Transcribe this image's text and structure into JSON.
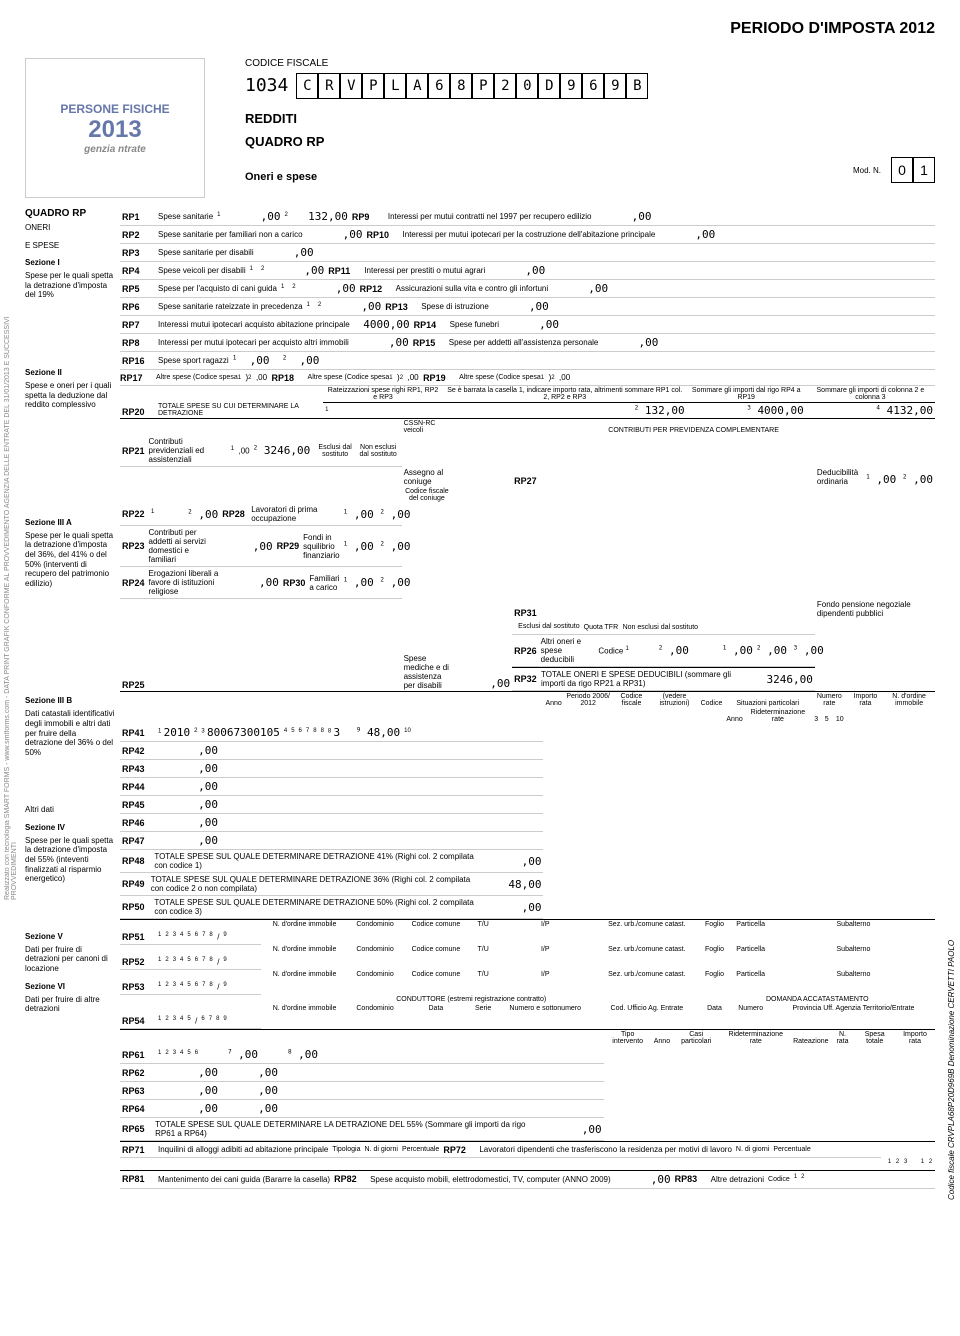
{
  "header": {
    "periodo": "PERIODO D'IMPOSTA 2012",
    "logo_line1": "PERSONE FISICHE",
    "logo_line2": "2013",
    "logo_line3": "genzia ntrate",
    "cf_label": "CODICE FISCALE",
    "cf_prefix": "1034",
    "cf_chars": [
      "C",
      "R",
      "V",
      "P",
      "L",
      "A",
      "6",
      "8",
      "P",
      "2",
      "0",
      "D",
      "9",
      "6",
      "9",
      "B"
    ],
    "redditi": "REDDITI",
    "quadro": "QUADRO RP",
    "oneri": "Oneri e spese",
    "modn_label": "Mod. N.",
    "modn_val": [
      "0",
      "1"
    ]
  },
  "sidebar": {
    "s0": {
      "title": "QUADRO RP",
      "sub1": "ONERI",
      "sub2": "E SPESE"
    },
    "s1": {
      "title": "Sezione I",
      "sub": "Spese per le quali spetta la detrazione d'imposta del 19%"
    },
    "s2": {
      "title": "Sezione II",
      "sub": "Spese e oneri per i quali spetta la deduzione dal reddito complessivo"
    },
    "s3a": {
      "title": "Sezione III A",
      "sub": "Spese per le quali spetta la detrazione d'imposta del 36%, del 41% o del 50% (interventi di recupero del patrimonio edilizio)"
    },
    "s3b": {
      "title": "Sezione III B",
      "sub": "Dati catastali identificativi degli immobili e altri dati per fruire della detrazione del 36% o del 50%"
    },
    "s4": {
      "title": "Sezione IV",
      "sub": "Spese per le quali spetta la detrazione d'imposta del 55% (inteventi finalizzati al risparmio energetico)"
    },
    "s5": {
      "title": "Sezione V",
      "sub": "Dati per fruire di detrazioni per canoni di locazione"
    },
    "s6": {
      "title": "Sezione VI",
      "sub": "Dati per fruire di altre detrazioni"
    },
    "altridati": "Altri dati"
  },
  "rows": {
    "RP1": {
      "label": "Spese sanitarie",
      "val2": "132"
    },
    "RP2": {
      "label": "Spese sanitarie per familiari non a carico"
    },
    "RP3": {
      "label": "Spese sanitarie per disabili"
    },
    "RP4": {
      "label": "Spese veicoli per disabili"
    },
    "RP5": {
      "label": "Spese per l'acquisto di cani guida"
    },
    "RP6": {
      "label": "Spese sanitarie rateizzate in precedenza"
    },
    "RP7": {
      "label": "Interessi mutui ipotecari acquisto abitazione principale",
      "val": "4000"
    },
    "RP8": {
      "label": "Interessi per mutui ipotecari per acquisto altri immobili"
    },
    "RP9": {
      "label": "Interessi per mutui contratti nel 1997 per recupero edilizio"
    },
    "RP10": {
      "label": "Interessi per mutui ipotecari per la costruzione dell'abitazione principale"
    },
    "RP11": {
      "label": "Interessi per prestiti o mutui agrari"
    },
    "RP12": {
      "label": "Assicurazioni sulla vita e contro gli infortuni"
    },
    "RP13": {
      "label": "Spese di istruzione"
    },
    "RP14": {
      "label": "Spese funebri"
    },
    "RP15": {
      "label": "Spese per addetti all'assistenza personale"
    },
    "RP16": {
      "label": "Spese sport ragazzi"
    },
    "RP17": {
      "label": "Altre spese (Codice spesa"
    },
    "RP18": {
      "label": "Altre spese (Codice spesa"
    },
    "RP19": {
      "label": "Altre spese (Codice spesa"
    },
    "RP20": {
      "label": "TOTALE SPESE SU CUI DETERMINARE LA DETRAZIONE",
      "c1": "Rateizzazioni spese righi RP1, RP2 e RP3",
      "c2": "Se è barrata la casella 1, indicare importo rata, altrimenti sommare RP1 col. 2, RP2 e RP3",
      "c3": "Sommare gli importi dal rigo RP4 a RP19",
      "c4": "Sommare gli importi di colonna 2 e colonna 3",
      "v2": "132",
      "v3": "4000",
      "v4": "4132"
    },
    "RP21": {
      "label": "Contributi previdenziali ed assistenziali",
      "sub": "CSSN-RC veicoli",
      "val2": "3246",
      "head": "CONTRIBUTI PER PREVIDENZA COMPLEMENTARE",
      "h1": "Esclusi dal sostituto",
      "h2": "Non esclusi dal sostituto"
    },
    "RP22": {
      "label": "Assegno al coniuge",
      "sub": "Codice fiscale del coniuge"
    },
    "RP23": {
      "label": "Contributi per addetti ai servizi domestici e familiari"
    },
    "RP24": {
      "label": "Erogazioni liberali a favore di istituzioni religiose"
    },
    "RP25": {
      "label": "Spese mediche e di assistenza per disabili"
    },
    "RP26": {
      "label": "Altri oneri e spese deducibili",
      "sub": "Codice"
    },
    "RP27": {
      "label": "Deducibilità ordinaria"
    },
    "RP28": {
      "label": "Lavoratori di prima occupazione"
    },
    "RP29": {
      "label": "Fondi in squilibrio finanziario"
    },
    "RP30": {
      "label": "Familiari a carico"
    },
    "RP31": {
      "label": "Fondo pensione negoziale dipendenti pubblici",
      "h1": "Esclusi dal sostituto",
      "h2": "Quota TFR",
      "h3": "Non esclusi dal sostituto"
    },
    "RP32": {
      "label": "TOTALE ONERI E SPESE DEDUCIBILI (sommare gli importi da rigo RP21 a RP31)",
      "val": "3246"
    },
    "RP41": {
      "anno": "2010",
      "cf": "80067300105",
      "rate": "3",
      "importo": "48"
    },
    "RP48": {
      "label": "TOTALE SPESE SUL QUALE DETERMINARE DETRAZIONE 41% (Righi col. 2 compilata con codice 1)"
    },
    "RP49": {
      "label": "TOTALE SPESE SUL QUALE DETERMINARE DETRAZIONE 36% (Righi col. 2 compilata con codice 2 o non compilata)",
      "val": "48"
    },
    "RP50": {
      "label": "TOTALE SPESE SUL QUALE DETERMINARE DETRAZIONE 50% (Righi col. 2 compilata con codice 3)"
    },
    "RP65": {
      "label": "TOTALE SPESE SUL QUALE DETERMINARE LA DETRAZIONE DEL 55% (Sommare gli importi da rigo RP61 a RP64)"
    },
    "RP71": {
      "label": "Inquilini di alloggi adibiti ad abitazione principale",
      "c1": "Tipologia",
      "c2": "N. di giorni",
      "c3": "Percentuale"
    },
    "RP72": {
      "label": "Lavoratori dipendenti che trasferiscono la residenza per motivi di lavoro",
      "c1": "N. di giorni",
      "c2": "Percentuale"
    },
    "RP81": {
      "label": "Mantenimento dei cani guida (Bararre la casella)"
    },
    "RP82": {
      "label": "Spese acquisto mobili, elettrodomestici, TV, computer (ANNO 2009)"
    },
    "RP83": {
      "label": "Altre detrazioni",
      "sub": "Codice"
    }
  },
  "s3a_headers": {
    "anno": "Anno",
    "periodo": "Periodo 2006/ 2012",
    "cf": "Codice fiscale",
    "vedere": "(vedere istruzioni)",
    "codice": "Codice",
    "sit": "Situazioni particolari",
    "anno2": "Anno",
    "rid": "Rideterminazione rate",
    "nr": "Numero rate",
    "r3": "3",
    "r5": "5",
    "r10": "10",
    "ir": "Importo rata",
    "nord": "N. d'ordine immobile"
  },
  "s3b_headers": {
    "nord": "N. d'ordine immobile",
    "cond": "Condominio",
    "cc": "Codice comune",
    "tu": "T/U",
    "ip": "I/P",
    "sez": "Sez. urb./comune catast.",
    "foglio": "Foglio",
    "part": "Particella",
    "sub": "Subalterno",
    "cond_h": "CONDUTTORE (estremi registrazione contratto)",
    "dom_h": "DOMANDA ACCATASTAMENTO",
    "data": "Data",
    "serie": "Serie",
    "num_sot": "Numero e sottonumero",
    "cue": "Cod. Ufficio Ag. Entrate",
    "numero": "Numero",
    "prov": "Provincia Uff. Agenzia Territorio/Entrate"
  },
  "s4_headers": {
    "tipo": "Tipo intervento",
    "anno": "Anno",
    "casi": "Casi particolari",
    "rid": "Rideterminazione rate",
    "rat": "Rateazione",
    "nrata": "N. rata",
    "spesa": "Spesa totale",
    "ir": "Importo rata"
  },
  "vertical_left": "Realizzato con tecnologia SMART FORMS - www.smtforms.com - DATA PRINT GRAFIK    CONFORME AL PROVVEDIMENTO AGENZIA DELLE ENTRATE DEL 31/01/2013 E SUCCESSIVI PROVVEDIMENTI",
  "vertical_right": "Codice fiscale CRVPLA68P20D969B Denominazione CERVETTI PAOLO"
}
